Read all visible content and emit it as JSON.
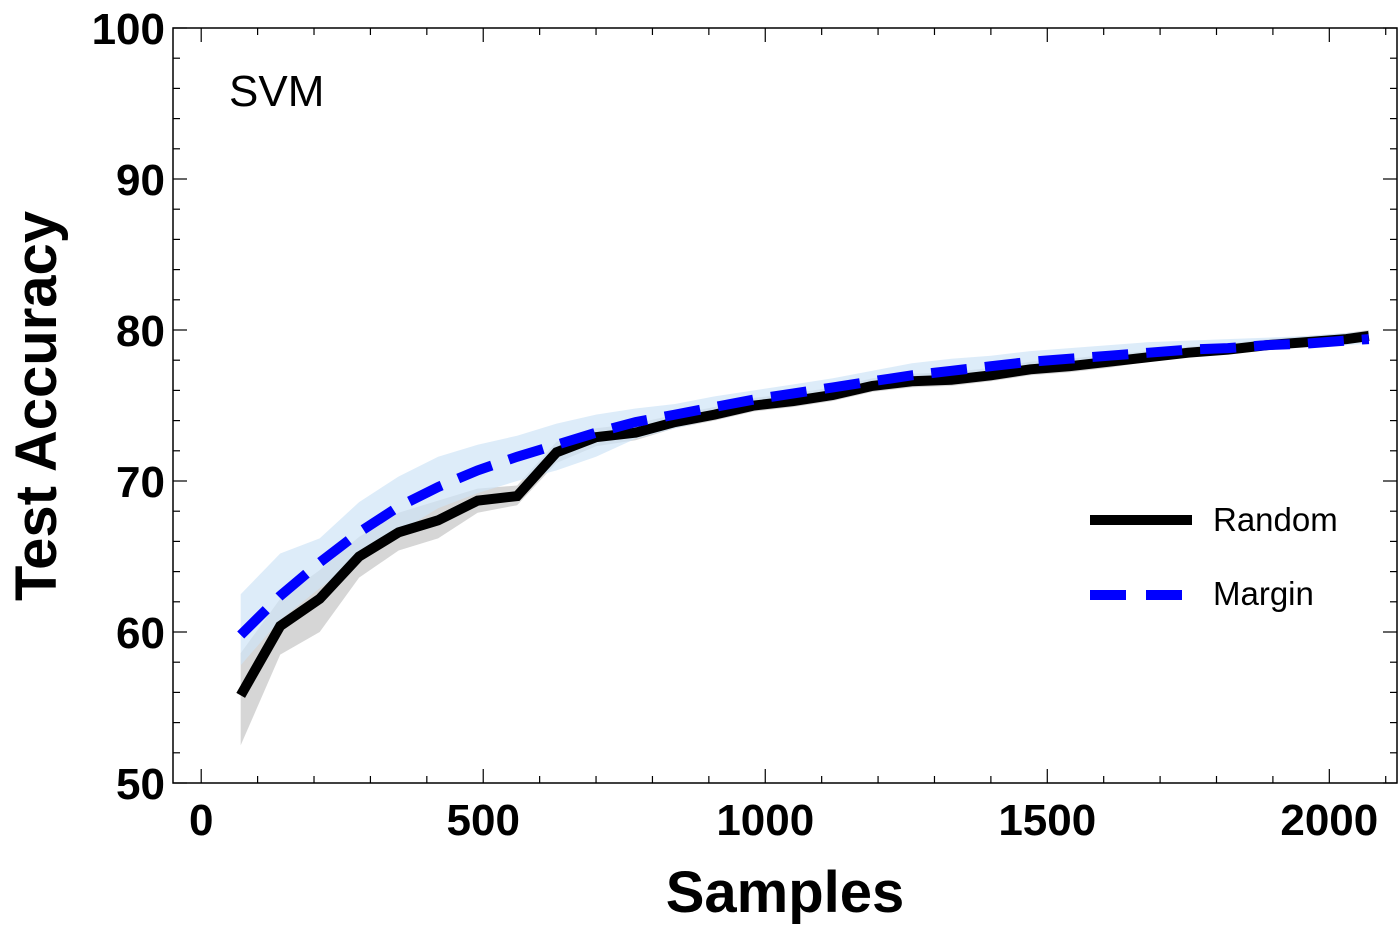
{
  "chart_data": {
    "type": "line",
    "title": "",
    "panel_label": "SVM",
    "xlabel": "Samples",
    "ylabel": "Test Accuracy",
    "xlim": [
      -50,
      2120
    ],
    "ylim": [
      50,
      100
    ],
    "xticks": [
      0,
      500,
      1000,
      1500,
      2000
    ],
    "yticks": [
      50,
      60,
      70,
      80,
      90,
      100
    ],
    "grid": false,
    "legend_position": "center-right",
    "x": [
      70,
      140,
      210,
      280,
      350,
      420,
      490,
      560,
      630,
      700,
      770,
      840,
      910,
      980,
      1050,
      1120,
      1190,
      1260,
      1330,
      1400,
      1470,
      1540,
      1610,
      1680,
      1750,
      1820,
      1890,
      1960,
      2030,
      2070
    ],
    "series": [
      {
        "name": "Random",
        "color": "#000000",
        "band_color": "#c8c8c8",
        "dash": "solid",
        "values": [
          55.8,
          60.4,
          62.2,
          65.0,
          66.6,
          67.4,
          68.7,
          69.0,
          71.9,
          72.9,
          73.2,
          73.9,
          74.4,
          75.0,
          75.3,
          75.7,
          76.3,
          76.6,
          76.7,
          77.0,
          77.4,
          77.6,
          77.9,
          78.2,
          78.5,
          78.7,
          79.0,
          79.2,
          79.4,
          79.6
        ],
        "lower": [
          52.5,
          58.5,
          60.0,
          63.6,
          65.4,
          66.2,
          67.9,
          68.4,
          71.2,
          72.3,
          72.7,
          73.5,
          74.0,
          74.6,
          74.9,
          75.3,
          75.9,
          76.2,
          76.3,
          76.6,
          77.0,
          77.2,
          77.5,
          77.9,
          78.2,
          78.4,
          78.7,
          78.9,
          79.1,
          79.2
        ],
        "upper": [
          58.6,
          62.2,
          64.1,
          66.3,
          67.9,
          68.7,
          69.5,
          69.7,
          72.6,
          73.5,
          73.8,
          74.4,
          74.9,
          75.5,
          75.8,
          76.2,
          76.8,
          77.1,
          77.2,
          77.5,
          77.9,
          78.1,
          78.4,
          78.6,
          78.9,
          79.1,
          79.4,
          79.6,
          79.8,
          80.0
        ]
      },
      {
        "name": "Margin",
        "color": "#0000ff",
        "band_color": "#cfe4f7",
        "dash": "dashed",
        "values": [
          59.8,
          62.4,
          64.6,
          66.6,
          68.3,
          69.6,
          70.7,
          71.6,
          72.4,
          73.2,
          73.9,
          74.4,
          74.9,
          75.4,
          75.8,
          76.2,
          76.6,
          77.0,
          77.3,
          77.6,
          77.9,
          78.1,
          78.3,
          78.5,
          78.7,
          78.8,
          79.0,
          79.1,
          79.3,
          79.4
        ],
        "lower": [
          57.8,
          60.8,
          62.9,
          64.9,
          66.6,
          68.2,
          69.2,
          70.0,
          70.7,
          71.6,
          72.8,
          73.5,
          74.1,
          74.7,
          75.2,
          75.7,
          76.1,
          76.5,
          76.8,
          77.1,
          77.4,
          77.6,
          77.8,
          78.0,
          78.2,
          78.4,
          78.7,
          78.9,
          79.0,
          79.1
        ],
        "upper": [
          62.5,
          65.2,
          66.2,
          68.6,
          70.3,
          71.6,
          72.4,
          73.0,
          73.8,
          74.4,
          74.8,
          75.1,
          75.6,
          76.0,
          76.4,
          76.8,
          77.3,
          77.8,
          78.1,
          78.3,
          78.6,
          78.8,
          79.0,
          79.2,
          79.3,
          79.4,
          79.5,
          79.6,
          79.8,
          79.9
        ]
      }
    ]
  }
}
